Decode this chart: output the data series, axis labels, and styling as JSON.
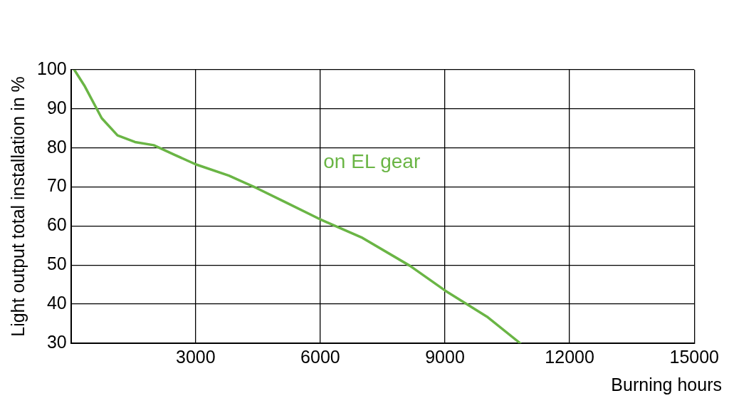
{
  "chart_data": {
    "type": "line",
    "xlabel": "Burning hours",
    "ylabel": "Light output total installation in %",
    "xlim": [
      0,
      15000
    ],
    "ylim": [
      30,
      100
    ],
    "xticks": [
      {
        "value": 0,
        "label": null
      },
      3000,
      6000,
      9000,
      12000,
      15000
    ],
    "yticks": [
      30,
      40,
      50,
      60,
      70,
      80,
      90,
      100
    ],
    "grid": true,
    "legend": false,
    "marker": "none",
    "line_style": "solid",
    "series": [
      {
        "name": "on EL gear",
        "color": "#6ab545",
        "x": [
          80,
          320,
          740,
          1120,
          1540,
          1990,
          2500,
          3000,
          3800,
          4470,
          5140,
          5980,
          6990,
          8160,
          9000,
          10010,
          10810
        ],
        "values": [
          100,
          96,
          87.6,
          83.2,
          81.5,
          80.7,
          78.2,
          75.8,
          72.9,
          69.7,
          66.2,
          61.8,
          57.1,
          49.8,
          43.5,
          36.8,
          30
        ]
      }
    ]
  }
}
